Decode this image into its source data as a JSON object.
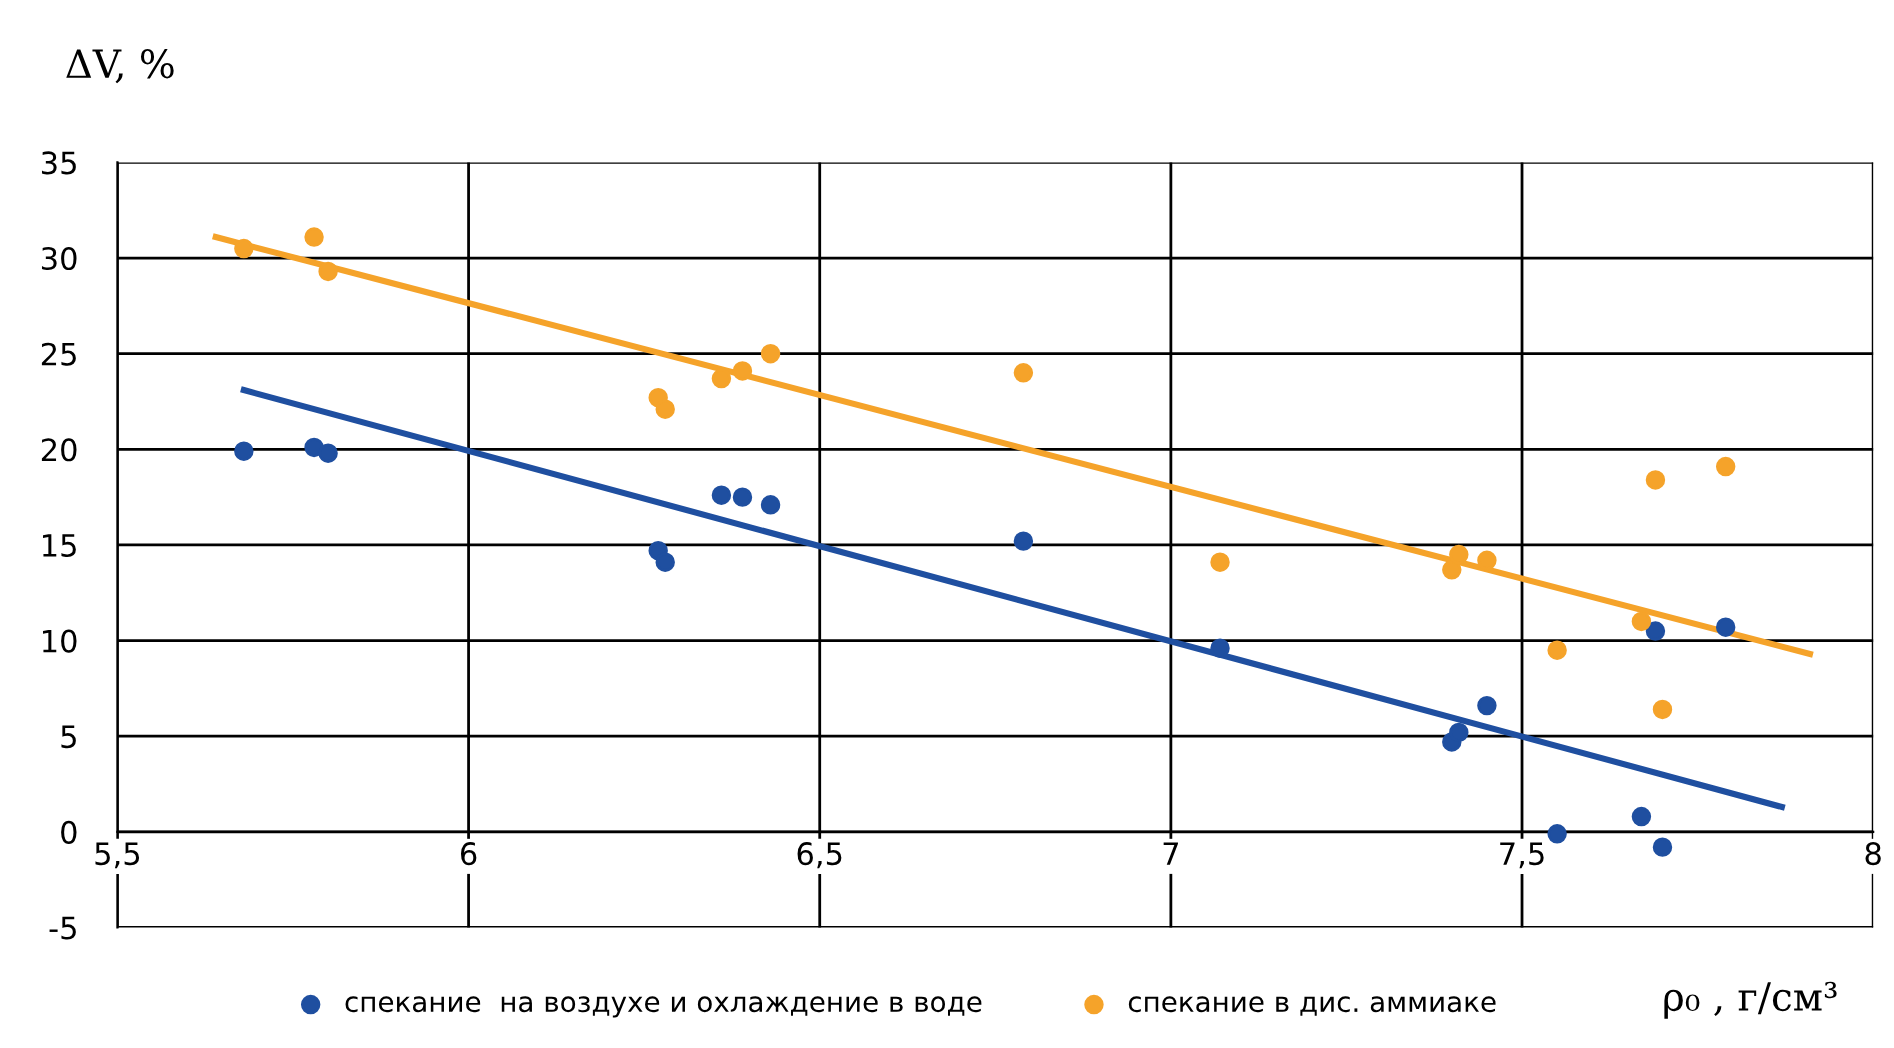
{
  "chart_data": {
    "type": "scatter",
    "ylabel": "ΔV, %",
    "xlabel": "ρ₀ , г/см³",
    "xlim": [
      5.5,
      8
    ],
    "ylim": [
      -5,
      35
    ],
    "xticks": [
      {
        "value": 5.5,
        "label": "5,5"
      },
      6,
      {
        "value": 6.5,
        "label": "6,5"
      },
      7,
      {
        "value": 7.5,
        "label": "7,5"
      },
      8
    ],
    "yticks": [
      -5,
      0,
      5,
      10,
      15,
      20,
      25,
      30,
      35
    ],
    "grid": true,
    "legend": "bottom",
    "marker": "circle",
    "series": [
      {
        "name": "спекание  на воздухе и охлаждение в воде",
        "color": "#1f4fa0",
        "x": [
          5.68,
          5.78,
          5.8,
          6.27,
          6.28,
          6.36,
          6.39,
          6.43,
          6.79,
          7.07,
          7.4,
          7.41,
          7.45,
          7.55,
          7.67,
          7.69,
          7.7,
          7.79
        ],
        "values": [
          19.9,
          20.1,
          19.8,
          14.7,
          14.1,
          17.6,
          17.5,
          17.1,
          15.2,
          9.6,
          4.7,
          5.2,
          6.6,
          -0.1,
          0.8,
          10.5,
          -0.8,
          10.7
        ]
      },
      {
        "name": "спекание в дис. аммиаке",
        "color": "#f5a32a",
        "x": [
          5.68,
          5.78,
          5.8,
          6.27,
          6.28,
          6.36,
          6.39,
          6.43,
          6.79,
          7.07,
          7.4,
          7.41,
          7.45,
          7.55,
          7.67,
          7.69,
          7.7,
          7.79
        ],
        "values": [
          30.5,
          31.1,
          29.3,
          22.7,
          22.1,
          23.7,
          24.1,
          25.0,
          24.0,
          14.1,
          13.7,
          14.5,
          14.2,
          9.5,
          11.0,
          18.4,
          6.4,
          19.1
        ]
      },
      {
        "type": "line",
        "color": "#1f4fa0",
        "x": [
          5.68,
          7.87
        ],
        "values": [
          23.1,
          1.3
        ],
        "marker": "none"
      },
      {
        "type": "line",
        "color": "#f5a32a",
        "x": [
          5.64,
          7.91
        ],
        "values": [
          31.1,
          9.3
        ],
        "marker": "none"
      }
    ]
  }
}
